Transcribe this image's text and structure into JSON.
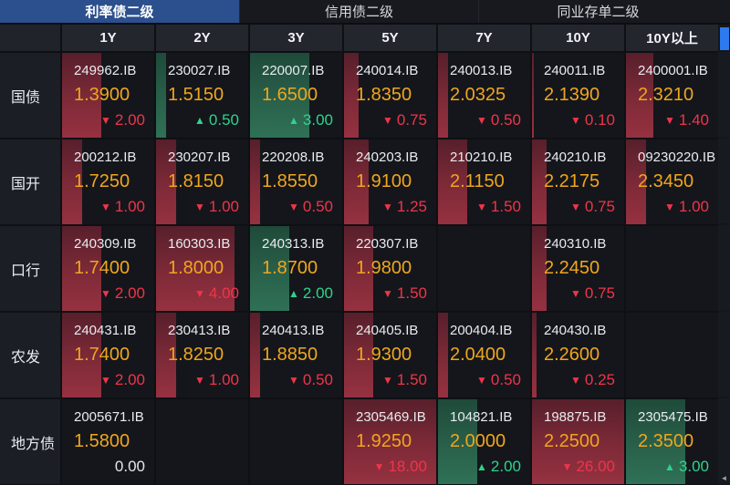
{
  "tabs": [
    {
      "label": "利率债二级",
      "active": true
    },
    {
      "label": "信用债二级",
      "active": false
    },
    {
      "label": "同业存单二级",
      "active": false
    }
  ],
  "columns": [
    "1Y",
    "2Y",
    "3Y",
    "5Y",
    "7Y",
    "10Y",
    "10Y以上"
  ],
  "colors": {
    "accent_blue": "#2c4f8e",
    "yield_gold": "#f0a61e",
    "down_red": "#f0344a",
    "up_green": "#2ed38c",
    "bar_red": "#963140",
    "bar_green": "#2f7156",
    "scroll_thumb_blue": "#2d79ee"
  },
  "icons": {
    "down_triangle": "▼",
    "up_triangle": "▲",
    "scroll_left_arrow": "◄"
  },
  "rows": [
    {
      "label": "国债",
      "cells": [
        {
          "code": "249962.IB",
          "yield": "1.3900",
          "change": "2.00",
          "direction": "down"
        },
        {
          "code": "230027.IB",
          "yield": "1.5150",
          "change": "0.50",
          "direction": "up"
        },
        {
          "code": "220007.IB",
          "yield": "1.6500",
          "change": "3.00",
          "direction": "up"
        },
        {
          "code": "240014.IB",
          "yield": "1.8350",
          "change": "0.75",
          "direction": "down"
        },
        {
          "code": "240013.IB",
          "yield": "2.0325",
          "change": "0.50",
          "direction": "down"
        },
        {
          "code": "240011.IB",
          "yield": "2.1390",
          "change": "0.10",
          "direction": "down"
        },
        {
          "code": "2400001.IB",
          "yield": "2.3210",
          "change": "1.40",
          "direction": "down"
        }
      ]
    },
    {
      "label": "国开",
      "cells": [
        {
          "code": "200212.IB",
          "yield": "1.7250",
          "change": "1.00",
          "direction": "down"
        },
        {
          "code": "230207.IB",
          "yield": "1.8150",
          "change": "1.00",
          "direction": "down"
        },
        {
          "code": "220208.IB",
          "yield": "1.8550",
          "change": "0.50",
          "direction": "down"
        },
        {
          "code": "240203.IB",
          "yield": "1.9100",
          "change": "1.25",
          "direction": "down"
        },
        {
          "code": "210210.IB",
          "yield": "2.1150",
          "change": "1.50",
          "direction": "down"
        },
        {
          "code": "240210.IB",
          "yield": "2.2175",
          "change": "0.75",
          "direction": "down"
        },
        {
          "code": "09230220.IB",
          "yield": "2.3450",
          "change": "1.00",
          "direction": "down"
        }
      ]
    },
    {
      "label": "口行",
      "cells": [
        {
          "code": "240309.IB",
          "yield": "1.7400",
          "change": "2.00",
          "direction": "down"
        },
        {
          "code": "160303.IB",
          "yield": "1.8000",
          "change": "4.00",
          "direction": "down"
        },
        {
          "code": "240313.IB",
          "yield": "1.8700",
          "change": "2.00",
          "direction": "up"
        },
        {
          "code": "220307.IB",
          "yield": "1.9800",
          "change": "1.50",
          "direction": "down"
        },
        null,
        {
          "code": "240310.IB",
          "yield": "2.2450",
          "change": "0.75",
          "direction": "down"
        },
        null
      ]
    },
    {
      "label": "农发",
      "cells": [
        {
          "code": "240431.IB",
          "yield": "1.7400",
          "change": "2.00",
          "direction": "down"
        },
        {
          "code": "230413.IB",
          "yield": "1.8250",
          "change": "1.00",
          "direction": "down"
        },
        {
          "code": "240413.IB",
          "yield": "1.8850",
          "change": "0.50",
          "direction": "down"
        },
        {
          "code": "240405.IB",
          "yield": "1.9300",
          "change": "1.50",
          "direction": "down"
        },
        {
          "code": "200404.IB",
          "yield": "2.0400",
          "change": "0.50",
          "direction": "down"
        },
        {
          "code": "240430.IB",
          "yield": "2.2600",
          "change": "0.25",
          "direction": "down"
        },
        null
      ]
    },
    {
      "label": "地方债",
      "cells": [
        {
          "code": "2005671.IB",
          "yield": "1.5800",
          "change": "0.00",
          "direction": "flat"
        },
        null,
        null,
        {
          "code": "2305469.IB",
          "yield": "1.9250",
          "change": "18.00",
          "direction": "down"
        },
        {
          "code": "104821.IB",
          "yield": "2.0000",
          "change": "2.00",
          "direction": "up"
        },
        {
          "code": "198875.IB",
          "yield": "2.2500",
          "change": "26.00",
          "direction": "down"
        },
        {
          "code": "2305475.IB",
          "yield": "2.3500",
          "change": "3.00",
          "direction": "up"
        }
      ]
    }
  ]
}
